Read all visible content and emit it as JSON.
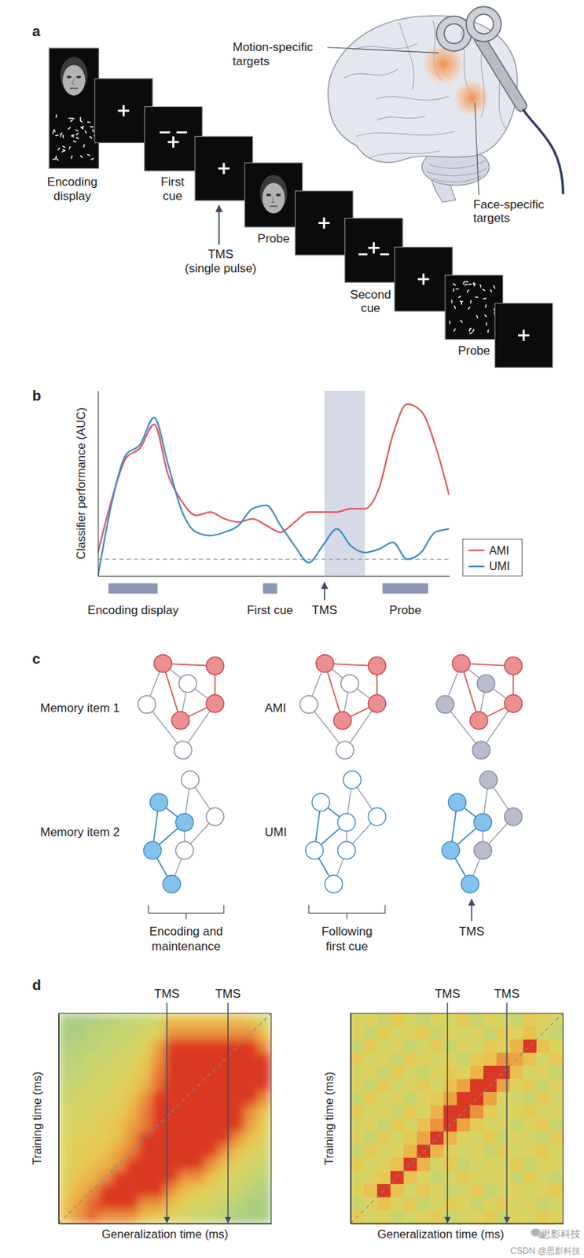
{
  "panel_a": {
    "label": "a",
    "labels": {
      "encoding": [
        "Encoding",
        "display"
      ],
      "first_cue": [
        "First",
        "cue"
      ],
      "tms": [
        "TMS",
        "(single pulse)"
      ],
      "probe_1": [
        "Probe"
      ],
      "second_cue": [
        "Second",
        "cue"
      ],
      "probe_2": [
        "Probe"
      ],
      "motion": [
        "Motion-specific",
        "targets"
      ],
      "face": [
        "Face-specific",
        "targets"
      ]
    }
  },
  "chart_data": {
    "type": "line",
    "panel_label": "b",
    "ylabel": "Classifier performance (AUC)",
    "x": [
      0,
      4,
      8,
      12,
      16,
      20,
      24,
      28,
      32,
      36,
      40,
      44,
      48,
      52,
      56,
      60,
      64,
      68,
      72,
      76,
      80,
      84,
      88,
      92,
      96,
      100
    ],
    "series": [
      {
        "name": "AMI",
        "color": "#e05a5c",
        "values": [
          0.52,
          0.68,
          0.8,
          0.83,
          0.9,
          0.75,
          0.67,
          0.63,
          0.64,
          0.62,
          0.61,
          0.62,
          0.6,
          0.58,
          0.61,
          0.64,
          0.64,
          0.64,
          0.65,
          0.65,
          0.71,
          0.87,
          0.96,
          0.94,
          0.84,
          0.69
        ]
      },
      {
        "name": "UMI",
        "color": "#3e8ecb",
        "values": [
          0.45,
          0.67,
          0.81,
          0.84,
          0.92,
          0.78,
          0.64,
          0.58,
          0.57,
          0.58,
          0.6,
          0.65,
          0.66,
          0.6,
          0.54,
          0.49,
          0.54,
          0.59,
          0.54,
          0.52,
          0.53,
          0.55,
          0.5,
          0.52,
          0.58,
          0.59
        ]
      }
    ],
    "xlim": [
      0,
      100
    ],
    "ylim": [
      0.45,
      1.0
    ],
    "tick_labels": false,
    "legend": "right",
    "chance_level": 0.5,
    "shaded_window": [
      64.5,
      76
    ],
    "events": [
      {
        "label": "Encoding display",
        "range": [
          3,
          17
        ]
      },
      {
        "label": "First cue",
        "range": [
          47,
          51
        ]
      },
      {
        "label": "Probe",
        "range": [
          81,
          94
        ]
      }
    ],
    "marker_event": {
      "label": "TMS",
      "x": 64.5
    }
  },
  "panel_c": {
    "label": "c",
    "row_labels": [
      "Memory item 1",
      "Memory item 2"
    ],
    "state_labels": [
      "AMI",
      "UMI"
    ],
    "column_labels": [
      [
        "Encoding and",
        "maintenance"
      ],
      [
        "Following",
        "first cue"
      ]
    ],
    "tms_label": "TMS"
  },
  "panel_d": {
    "label": "d",
    "heatmaps": [
      {
        "xlabel": "Generalization time (ms)",
        "ylabel": "Training time (ms)",
        "xlim": [
          0,
          16
        ],
        "ylim": [
          0,
          16
        ],
        "tms_lines": [
          {
            "label": "TMS",
            "x": 8.15
          },
          {
            "label": "TMS",
            "x": 12.75
          }
        ],
        "cells": [
          [
            0.3,
            0.3,
            0.3,
            0.35,
            0.35,
            0.4,
            0.4,
            0.45,
            0.6,
            0.6,
            0.6,
            0.6,
            0.6,
            0.6,
            0.55,
            0.45
          ],
          [
            0.3,
            0.3,
            0.35,
            0.35,
            0.4,
            0.4,
            0.45,
            0.5,
            0.75,
            0.75,
            0.75,
            0.75,
            0.75,
            0.75,
            0.75,
            0.6
          ],
          [
            0.3,
            0.35,
            0.35,
            0.4,
            0.4,
            0.45,
            0.5,
            0.7,
            0.95,
            0.95,
            0.95,
            0.95,
            0.95,
            0.95,
            0.95,
            0.75
          ],
          [
            0.35,
            0.35,
            0.4,
            0.4,
            0.45,
            0.45,
            0.55,
            0.75,
            0.95,
            0.95,
            0.95,
            0.95,
            0.95,
            0.95,
            0.95,
            0.95
          ],
          [
            0.35,
            0.4,
            0.4,
            0.45,
            0.45,
            0.5,
            0.6,
            0.8,
            0.95,
            0.95,
            0.95,
            0.95,
            0.95,
            0.95,
            0.95,
            0.95
          ],
          [
            0.4,
            0.4,
            0.45,
            0.45,
            0.5,
            0.55,
            0.65,
            0.85,
            0.95,
            0.95,
            0.95,
            0.95,
            0.95,
            0.95,
            0.95,
            0.95
          ],
          [
            0.4,
            0.45,
            0.45,
            0.5,
            0.5,
            0.6,
            0.75,
            0.95,
            0.95,
            0.95,
            0.95,
            0.95,
            0.95,
            0.95,
            0.95,
            0.75
          ],
          [
            0.45,
            0.45,
            0.5,
            0.5,
            0.55,
            0.65,
            0.8,
            0.95,
            0.95,
            0.95,
            0.95,
            0.95,
            0.95,
            0.95,
            0.75,
            0.6
          ],
          [
            0.45,
            0.5,
            0.5,
            0.55,
            0.6,
            0.7,
            0.8,
            0.95,
            0.95,
            0.95,
            0.95,
            0.95,
            0.95,
            0.95,
            0.7,
            0.55
          ],
          [
            0.5,
            0.5,
            0.55,
            0.55,
            0.6,
            0.75,
            0.95,
            0.95,
            0.95,
            0.95,
            0.95,
            0.95,
            0.95,
            0.75,
            0.6,
            0.5
          ],
          [
            0.5,
            0.55,
            0.55,
            0.6,
            0.7,
            0.8,
            0.95,
            0.95,
            0.95,
            0.95,
            0.95,
            0.95,
            0.75,
            0.6,
            0.5,
            0.45
          ],
          [
            0.5,
            0.55,
            0.6,
            0.65,
            0.75,
            0.95,
            0.95,
            0.95,
            0.95,
            0.95,
            0.95,
            0.75,
            0.6,
            0.5,
            0.45,
            0.4
          ],
          [
            0.5,
            0.6,
            0.65,
            0.75,
            0.95,
            0.95,
            0.95,
            0.95,
            0.95,
            0.75,
            0.75,
            0.6,
            0.5,
            0.45,
            0.4,
            0.35
          ],
          [
            0.55,
            0.65,
            0.75,
            0.95,
            0.95,
            0.95,
            0.95,
            0.95,
            0.75,
            0.6,
            0.55,
            0.5,
            0.45,
            0.4,
            0.35,
            0.3
          ],
          [
            0.6,
            0.7,
            0.85,
            0.95,
            0.95,
            0.95,
            0.75,
            0.75,
            0.6,
            0.5,
            0.45,
            0.45,
            0.4,
            0.35,
            0.3,
            0.3
          ],
          [
            0.6,
            0.75,
            0.85,
            0.75,
            0.75,
            0.75,
            0.6,
            0.55,
            0.5,
            0.45,
            0.4,
            0.4,
            0.35,
            0.3,
            0.3,
            0.3
          ]
        ]
      },
      {
        "xlabel": "Generalization time (ms)",
        "ylabel": "Training time (ms)",
        "xlim": [
          0,
          16
        ],
        "ylim": [
          0,
          16
        ],
        "tms_lines": [
          {
            "label": "TMS",
            "x": 7.3
          },
          {
            "label": "TMS",
            "x": 11.77
          }
        ],
        "cells": [
          [
            0.45,
            0.5,
            0.4,
            0.55,
            0.45,
            0.4,
            0.5,
            0.45,
            0.55,
            0.4,
            0.5,
            0.45,
            0.4,
            0.55,
            0.5,
            0.45
          ],
          [
            0.5,
            0.4,
            0.55,
            0.45,
            0.5,
            0.55,
            0.4,
            0.5,
            0.45,
            0.5,
            0.4,
            0.55,
            0.5,
            0.6,
            0.45,
            0.4
          ],
          [
            0.4,
            0.55,
            0.45,
            0.5,
            0.4,
            0.45,
            0.55,
            0.4,
            0.5,
            0.45,
            0.55,
            0.5,
            0.65,
            0.95,
            0.6,
            0.5
          ],
          [
            0.55,
            0.45,
            0.5,
            0.4,
            0.55,
            0.5,
            0.45,
            0.5,
            0.4,
            0.55,
            0.6,
            0.75,
            0.7,
            0.6,
            0.45,
            0.55
          ],
          [
            0.45,
            0.5,
            0.4,
            0.55,
            0.45,
            0.4,
            0.5,
            0.55,
            0.5,
            0.65,
            0.95,
            0.95,
            0.6,
            0.45,
            0.5,
            0.4
          ],
          [
            0.5,
            0.4,
            0.55,
            0.45,
            0.5,
            0.55,
            0.45,
            0.6,
            0.7,
            0.95,
            0.95,
            0.7,
            0.5,
            0.55,
            0.4,
            0.5
          ],
          [
            0.4,
            0.55,
            0.45,
            0.5,
            0.4,
            0.5,
            0.55,
            0.7,
            0.95,
            0.95,
            0.7,
            0.5,
            0.45,
            0.4,
            0.55,
            0.45
          ],
          [
            0.55,
            0.45,
            0.5,
            0.4,
            0.55,
            0.45,
            0.65,
            0.95,
            0.95,
            0.75,
            0.55,
            0.45,
            0.5,
            0.55,
            0.45,
            0.5
          ],
          [
            0.45,
            0.5,
            0.4,
            0.55,
            0.45,
            0.6,
            0.75,
            0.95,
            0.7,
            0.55,
            0.45,
            0.5,
            0.4,
            0.5,
            0.55,
            0.4
          ],
          [
            0.5,
            0.4,
            0.55,
            0.45,
            0.55,
            0.7,
            0.95,
            0.65,
            0.5,
            0.45,
            0.55,
            0.4,
            0.5,
            0.45,
            0.4,
            0.55
          ],
          [
            0.4,
            0.55,
            0.45,
            0.5,
            0.65,
            0.95,
            0.65,
            0.5,
            0.45,
            0.5,
            0.4,
            0.55,
            0.45,
            0.5,
            0.55,
            0.45
          ],
          [
            0.55,
            0.45,
            0.5,
            0.6,
            0.95,
            0.65,
            0.45,
            0.55,
            0.4,
            0.45,
            0.5,
            0.45,
            0.55,
            0.4,
            0.5,
            0.5
          ],
          [
            0.45,
            0.5,
            0.55,
            0.95,
            0.6,
            0.5,
            0.4,
            0.45,
            0.55,
            0.5,
            0.45,
            0.5,
            0.4,
            0.55,
            0.45,
            0.4
          ],
          [
            0.5,
            0.6,
            0.95,
            0.6,
            0.45,
            0.55,
            0.5,
            0.4,
            0.45,
            0.55,
            0.4,
            0.45,
            0.5,
            0.45,
            0.5,
            0.55
          ],
          [
            0.4,
            0.5,
            0.6,
            0.5,
            0.55,
            0.4,
            0.45,
            0.55,
            0.5,
            0.4,
            0.5,
            0.55,
            0.45,
            0.5,
            0.4,
            0.45
          ],
          [
            0.55,
            0.45,
            0.5,
            0.4,
            0.45,
            0.5,
            0.55,
            0.4,
            0.45,
            0.5,
            0.55,
            0.4,
            0.5,
            0.45,
            0.55,
            0.5
          ]
        ]
      }
    ]
  },
  "watermark": {
    "wechat": "思影科技",
    "csdn": "CSDN @思影科技"
  }
}
